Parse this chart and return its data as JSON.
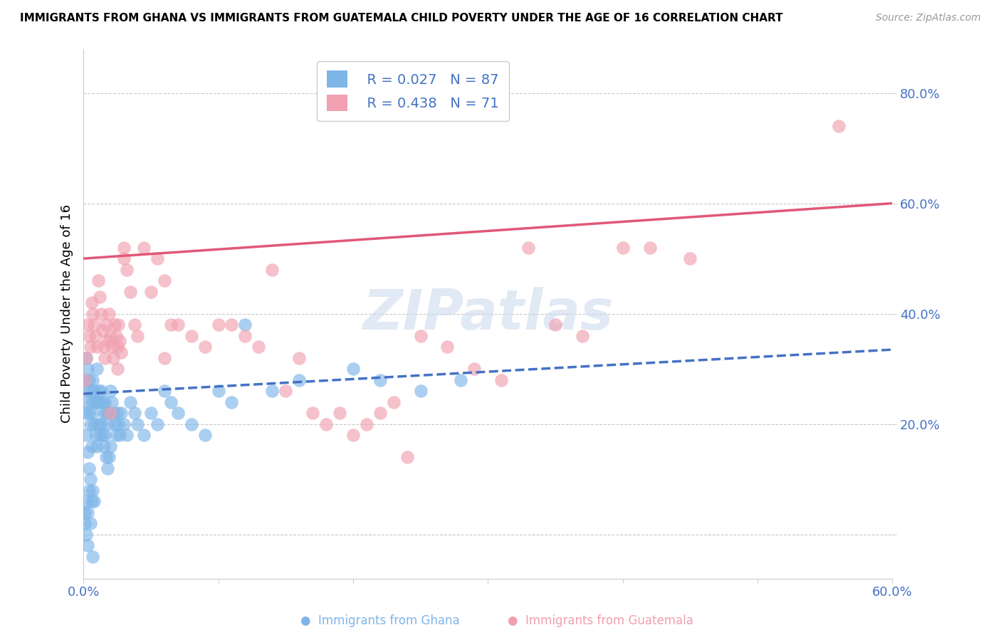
{
  "title": "IMMIGRANTS FROM GHANA VS IMMIGRANTS FROM GUATEMALA CHILD POVERTY UNDER THE AGE OF 16 CORRELATION CHART",
  "source": "Source: ZipAtlas.com",
  "ylabel": "Child Poverty Under the Age of 16",
  "xlim": [
    0.0,
    0.6
  ],
  "ylim": [
    -0.08,
    0.88
  ],
  "ghana_color": "#7EB6E8",
  "guatemala_color": "#F0A0B0",
  "ghana_R": 0.027,
  "ghana_N": 87,
  "guatemala_R": 0.438,
  "guatemala_N": 71,
  "ghana_line_color": "#4472C4",
  "guatemala_line_color": "#E05878",
  "watermark": "ZIPatlas",
  "ghana_x": [
    0.001,
    0.001,
    0.002,
    0.002,
    0.002,
    0.003,
    0.003,
    0.003,
    0.004,
    0.004,
    0.004,
    0.005,
    0.005,
    0.005,
    0.006,
    0.006,
    0.007,
    0.007,
    0.007,
    0.008,
    0.008,
    0.008,
    0.009,
    0.009,
    0.01,
    0.01,
    0.01,
    0.011,
    0.011,
    0.012,
    0.012,
    0.013,
    0.013,
    0.014,
    0.014,
    0.015,
    0.015,
    0.016,
    0.016,
    0.017,
    0.017,
    0.018,
    0.018,
    0.019,
    0.019,
    0.02,
    0.02,
    0.021,
    0.022,
    0.023,
    0.024,
    0.025,
    0.026,
    0.027,
    0.028,
    0.03,
    0.032,
    0.035,
    0.038,
    0.04,
    0.045,
    0.05,
    0.055,
    0.06,
    0.065,
    0.07,
    0.08,
    0.09,
    0.1,
    0.11,
    0.12,
    0.14,
    0.16,
    0.2,
    0.22,
    0.25,
    0.28,
    0.001,
    0.001,
    0.002,
    0.002,
    0.003,
    0.003,
    0.004,
    0.005,
    0.006,
    0.007
  ],
  "ghana_y": [
    0.28,
    0.22,
    0.32,
    0.26,
    0.18,
    0.3,
    0.24,
    0.15,
    0.28,
    0.22,
    0.12,
    0.26,
    0.2,
    0.1,
    0.24,
    0.16,
    0.28,
    0.22,
    0.08,
    0.26,
    0.2,
    0.06,
    0.24,
    0.18,
    0.3,
    0.24,
    0.16,
    0.26,
    0.2,
    0.24,
    0.18,
    0.26,
    0.2,
    0.24,
    0.18,
    0.22,
    0.16,
    0.24,
    0.18,
    0.22,
    0.14,
    0.2,
    0.12,
    0.22,
    0.14,
    0.26,
    0.16,
    0.24,
    0.22,
    0.2,
    0.18,
    0.22,
    0.2,
    0.18,
    0.22,
    0.2,
    0.18,
    0.24,
    0.22,
    0.2,
    0.18,
    0.22,
    0.2,
    0.26,
    0.24,
    0.22,
    0.2,
    0.18,
    0.26,
    0.24,
    0.38,
    0.26,
    0.28,
    0.3,
    0.28,
    0.26,
    0.28,
    0.04,
    0.02,
    0.06,
    0.0,
    0.04,
    -0.02,
    0.08,
    0.02,
    0.06,
    -0.04
  ],
  "guatemala_x": [
    0.001,
    0.002,
    0.003,
    0.004,
    0.005,
    0.006,
    0.007,
    0.008,
    0.009,
    0.01,
    0.011,
    0.012,
    0.013,
    0.014,
    0.015,
    0.016,
    0.017,
    0.018,
    0.019,
    0.02,
    0.021,
    0.022,
    0.023,
    0.024,
    0.025,
    0.026,
    0.027,
    0.028,
    0.03,
    0.032,
    0.035,
    0.038,
    0.04,
    0.045,
    0.05,
    0.055,
    0.06,
    0.065,
    0.07,
    0.08,
    0.09,
    0.1,
    0.11,
    0.12,
    0.13,
    0.14,
    0.15,
    0.16,
    0.17,
    0.18,
    0.19,
    0.2,
    0.21,
    0.22,
    0.23,
    0.24,
    0.25,
    0.27,
    0.29,
    0.31,
    0.33,
    0.35,
    0.37,
    0.4,
    0.42,
    0.45,
    0.02,
    0.025,
    0.03,
    0.06,
    0.56
  ],
  "guatemala_y": [
    0.28,
    0.32,
    0.38,
    0.36,
    0.34,
    0.42,
    0.4,
    0.38,
    0.36,
    0.34,
    0.46,
    0.43,
    0.4,
    0.37,
    0.34,
    0.32,
    0.38,
    0.35,
    0.4,
    0.36,
    0.34,
    0.32,
    0.38,
    0.36,
    0.34,
    0.38,
    0.35,
    0.33,
    0.52,
    0.48,
    0.44,
    0.38,
    0.36,
    0.52,
    0.44,
    0.5,
    0.46,
    0.38,
    0.38,
    0.36,
    0.34,
    0.38,
    0.38,
    0.36,
    0.34,
    0.48,
    0.26,
    0.32,
    0.22,
    0.2,
    0.22,
    0.18,
    0.2,
    0.22,
    0.24,
    0.14,
    0.36,
    0.34,
    0.3,
    0.28,
    0.52,
    0.38,
    0.36,
    0.52,
    0.52,
    0.5,
    0.22,
    0.3,
    0.5,
    0.32,
    0.74
  ],
  "ghana_line_x": [
    0.0,
    0.6
  ],
  "ghana_line_y": [
    0.255,
    0.335
  ],
  "guatemala_line_x": [
    0.0,
    0.6
  ],
  "guatemala_line_y": [
    0.5,
    0.6
  ]
}
